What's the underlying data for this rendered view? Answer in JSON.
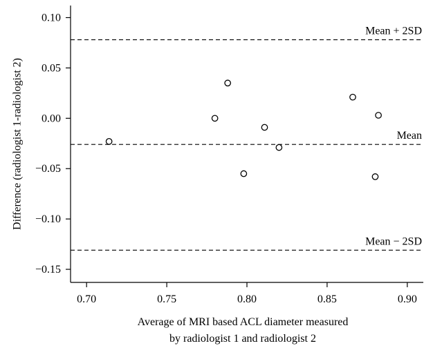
{
  "chart_data": {
    "type": "scatter",
    "title": "",
    "xlabel_lines": [
      "Average of MRI based ACL diameter measured",
      "by radiologist 1 and radiologist 2"
    ],
    "ylabel": "Difference (radiologist 1-radiologist 2)",
    "xlim": [
      0.69,
      0.91
    ],
    "ylim": [
      -0.163,
      0.112
    ],
    "x_ticks": [
      "0.70",
      "0.75",
      "0.80",
      "0.85",
      "0.90"
    ],
    "x_tick_values": [
      0.7,
      0.75,
      0.8,
      0.85,
      0.9
    ],
    "y_ticks": [
      "0.10",
      "0.05",
      "0.00",
      "-0.05",
      "-0.10",
      "-0.15"
    ],
    "y_tick_values": [
      0.1,
      0.05,
      0.0,
      -0.05,
      -0.1,
      -0.15
    ],
    "grid": false,
    "points": [
      {
        "x": 0.714,
        "y": -0.023
      },
      {
        "x": 0.78,
        "y": 0.0
      },
      {
        "x": 0.788,
        "y": 0.035
      },
      {
        "x": 0.798,
        "y": -0.055
      },
      {
        "x": 0.811,
        "y": -0.009
      },
      {
        "x": 0.82,
        "y": -0.029
      },
      {
        "x": 0.866,
        "y": 0.021
      },
      {
        "x": 0.88,
        "y": -0.058
      },
      {
        "x": 0.882,
        "y": 0.003
      }
    ],
    "reference_lines": [
      {
        "label": "Mean + 2SD",
        "y": 0.078
      },
      {
        "label": "Mean",
        "y": -0.026
      },
      {
        "label": "Mean − 2SD",
        "y": -0.131
      }
    ]
  }
}
